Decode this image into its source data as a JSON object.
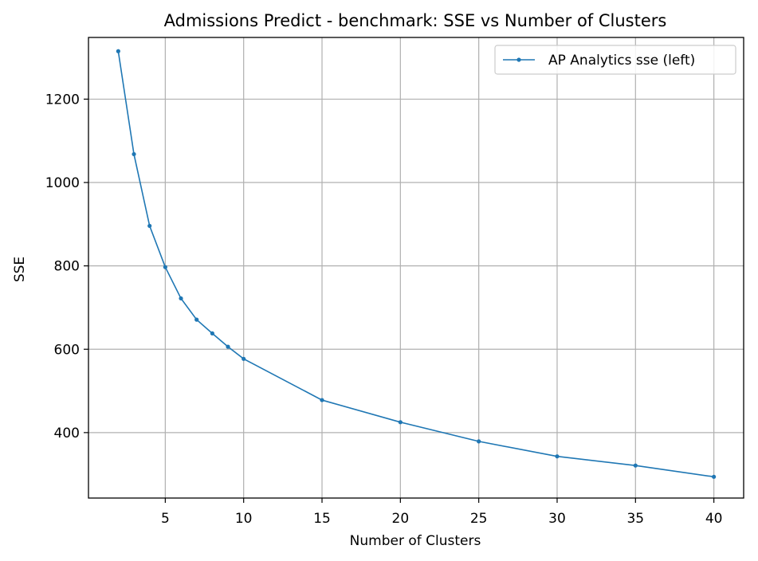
{
  "chart_data": {
    "type": "line",
    "title": "Admissions Predict - benchmark: SSE vs Number of Clusters",
    "xlabel": "Number of Clusters",
    "ylabel": "SSE",
    "xlim": [
      0.1,
      41.9
    ],
    "ylim": [
      243,
      1348
    ],
    "xticks": [
      5,
      10,
      15,
      20,
      25,
      30,
      35,
      40
    ],
    "yticks": [
      400,
      600,
      800,
      1000,
      1200
    ],
    "grid": true,
    "legend_position": "upper-right",
    "series": [
      {
        "name": "AP Analytics sse (left)",
        "color": "#1f77b4",
        "marker": "circle",
        "x": [
          2,
          3,
          4,
          5,
          6,
          7,
          8,
          9,
          10,
          15,
          20,
          25,
          30,
          35,
          40
        ],
        "y": [
          1315,
          1068,
          896,
          797,
          722,
          671,
          638,
          606,
          577,
          478,
          425,
          379,
          343,
          321,
          294
        ]
      }
    ]
  }
}
